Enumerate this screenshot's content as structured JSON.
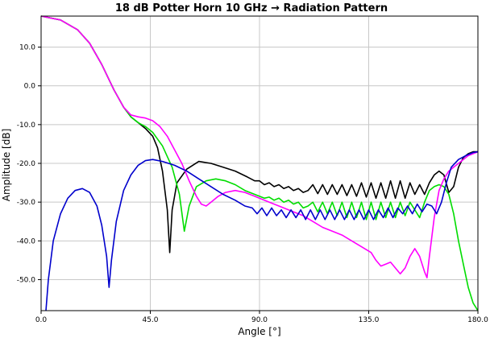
{
  "chart_data": {
    "type": "line",
    "title": "18 dB Potter Horn 10 GHz → Radiation Pattern",
    "xlabel": "Angle [°]",
    "ylabel": "Amplitude [dB]",
    "xlim": [
      0,
      180
    ],
    "ylim": [
      -58,
      18
    ],
    "x_ticks": [
      0,
      45,
      90,
      135,
      180
    ],
    "x_tick_labels": [
      "0.0",
      "45.0",
      "90.0",
      "135.0",
      "180.0"
    ],
    "y_ticks": [
      10,
      0,
      -10,
      -20,
      -30,
      -40,
      -50
    ],
    "y_tick_labels": [
      "10.0",
      "0.0",
      "-10.0",
      "-20.0",
      "-30.0",
      "-40.0",
      "-50.0"
    ],
    "grid": true,
    "series": [
      {
        "color": "#000000",
        "points": [
          [
            0,
            18
          ],
          [
            8,
            17
          ],
          [
            15,
            14.5
          ],
          [
            20,
            11
          ],
          [
            25,
            5.5
          ],
          [
            30,
            -1
          ],
          [
            34,
            -5.5
          ],
          [
            37,
            -8
          ],
          [
            40,
            -9.5
          ],
          [
            43,
            -11
          ],
          [
            46,
            -13
          ],
          [
            48,
            -16
          ],
          [
            50,
            -22
          ],
          [
            52,
            -32
          ],
          [
            53,
            -43
          ],
          [
            54,
            -32
          ],
          [
            56,
            -25
          ],
          [
            60,
            -21.5
          ],
          [
            65,
            -19.5
          ],
          [
            70,
            -20
          ],
          [
            75,
            -21
          ],
          [
            80,
            -22
          ],
          [
            85,
            -23.5
          ],
          [
            88,
            -24.5
          ],
          [
            90,
            -24.5
          ],
          [
            92,
            -25.5
          ],
          [
            94,
            -25
          ],
          [
            96,
            -26
          ],
          [
            98,
            -25.5
          ],
          [
            100,
            -26.5
          ],
          [
            102,
            -26
          ],
          [
            104,
            -27
          ],
          [
            106,
            -26.5
          ],
          [
            108,
            -27.5
          ],
          [
            110,
            -27
          ],
          [
            112,
            -25.5
          ],
          [
            114,
            -27.8
          ],
          [
            116,
            -25.5
          ],
          [
            118,
            -28
          ],
          [
            120,
            -25.5
          ],
          [
            122,
            -28
          ],
          [
            124,
            -25.5
          ],
          [
            126,
            -28.3
          ],
          [
            128,
            -25.5
          ],
          [
            130,
            -28.5
          ],
          [
            132,
            -25
          ],
          [
            134,
            -28.7
          ],
          [
            136,
            -25
          ],
          [
            138,
            -29
          ],
          [
            140,
            -25
          ],
          [
            142,
            -29
          ],
          [
            144,
            -24.5
          ],
          [
            146,
            -29
          ],
          [
            148,
            -24.5
          ],
          [
            150,
            -29
          ],
          [
            152,
            -25
          ],
          [
            154,
            -28
          ],
          [
            156,
            -25.5
          ],
          [
            158,
            -28
          ],
          [
            160,
            -25
          ],
          [
            162,
            -23
          ],
          [
            164,
            -22
          ],
          [
            166,
            -23
          ],
          [
            168,
            -27.5
          ],
          [
            170,
            -26
          ],
          [
            172,
            -21
          ],
          [
            174,
            -18.5
          ],
          [
            176,
            -17.5
          ],
          [
            178,
            -17
          ],
          [
            180,
            -17
          ]
        ]
      },
      {
        "color": "#00dd00",
        "points": [
          [
            0,
            18
          ],
          [
            8,
            17
          ],
          [
            15,
            14.5
          ],
          [
            20,
            11
          ],
          [
            25,
            5.5
          ],
          [
            30,
            -1
          ],
          [
            34,
            -5.5
          ],
          [
            37,
            -8
          ],
          [
            40,
            -9.5
          ],
          [
            43,
            -10.5
          ],
          [
            46,
            -12
          ],
          [
            50,
            -15.5
          ],
          [
            54,
            -21
          ],
          [
            57,
            -28
          ],
          [
            59,
            -37.5
          ],
          [
            61,
            -31
          ],
          [
            64,
            -26
          ],
          [
            68,
            -24.5
          ],
          [
            72,
            -24
          ],
          [
            76,
            -24.5
          ],
          [
            80,
            -25.5
          ],
          [
            84,
            -27
          ],
          [
            88,
            -28
          ],
          [
            90,
            -28.5
          ],
          [
            92,
            -29
          ],
          [
            94,
            -28.7
          ],
          [
            96,
            -29.5
          ],
          [
            98,
            -29
          ],
          [
            100,
            -30
          ],
          [
            102,
            -29.5
          ],
          [
            104,
            -30.5
          ],
          [
            106,
            -30
          ],
          [
            108,
            -31.5
          ],
          [
            110,
            -31
          ],
          [
            112,
            -30
          ],
          [
            114,
            -32.5
          ],
          [
            116,
            -30
          ],
          [
            118,
            -33
          ],
          [
            120,
            -30
          ],
          [
            122,
            -33.5
          ],
          [
            124,
            -30
          ],
          [
            126,
            -34
          ],
          [
            128,
            -30
          ],
          [
            130,
            -34
          ],
          [
            132,
            -30
          ],
          [
            134,
            -34.5
          ],
          [
            136,
            -30
          ],
          [
            138,
            -34.5
          ],
          [
            140,
            -30
          ],
          [
            142,
            -34
          ],
          [
            144,
            -30
          ],
          [
            146,
            -34
          ],
          [
            148,
            -30
          ],
          [
            150,
            -33.5
          ],
          [
            152,
            -30
          ],
          [
            154,
            -32
          ],
          [
            156,
            -34
          ],
          [
            158,
            -30
          ],
          [
            160,
            -27
          ],
          [
            162,
            -26
          ],
          [
            164,
            -25.5
          ],
          [
            166,
            -26
          ],
          [
            168,
            -28
          ],
          [
            170,
            -33
          ],
          [
            172,
            -40
          ],
          [
            174,
            -46
          ],
          [
            176,
            -52
          ],
          [
            178,
            -56
          ],
          [
            180,
            -58
          ]
        ]
      },
      {
        "color": "#ff00ff",
        "points": [
          [
            0,
            18
          ],
          [
            8,
            17
          ],
          [
            15,
            14.5
          ],
          [
            20,
            11
          ],
          [
            25,
            5.5
          ],
          [
            30,
            -1
          ],
          [
            34,
            -5.5
          ],
          [
            37,
            -7.5
          ],
          [
            40,
            -8
          ],
          [
            43,
            -8.3
          ],
          [
            46,
            -9
          ],
          [
            49,
            -10.5
          ],
          [
            52,
            -13
          ],
          [
            55,
            -16.5
          ],
          [
            58,
            -20
          ],
          [
            61,
            -24.5
          ],
          [
            64,
            -28.5
          ],
          [
            66,
            -30.5
          ],
          [
            68,
            -31
          ],
          [
            70,
            -30
          ],
          [
            73,
            -28.5
          ],
          [
            76,
            -27.5
          ],
          [
            80,
            -27
          ],
          [
            84,
            -27.5
          ],
          [
            88,
            -28.5
          ],
          [
            92,
            -29.5
          ],
          [
            96,
            -30.5
          ],
          [
            100,
            -31.5
          ],
          [
            104,
            -32.5
          ],
          [
            108,
            -33.5
          ],
          [
            112,
            -35
          ],
          [
            116,
            -36.5
          ],
          [
            120,
            -37.5
          ],
          [
            124,
            -38.5
          ],
          [
            128,
            -40
          ],
          [
            132,
            -41.5
          ],
          [
            136,
            -43
          ],
          [
            138,
            -45
          ],
          [
            140,
            -46.5
          ],
          [
            142,
            -46
          ],
          [
            144,
            -45.5
          ],
          [
            146,
            -47
          ],
          [
            148,
            -48.5
          ],
          [
            150,
            -47
          ],
          [
            152,
            -44
          ],
          [
            154,
            -42
          ],
          [
            156,
            -44
          ],
          [
            158,
            -48
          ],
          [
            159,
            -49.5
          ],
          [
            160,
            -44
          ],
          [
            162,
            -34
          ],
          [
            164,
            -27
          ],
          [
            166,
            -24
          ],
          [
            168,
            -22
          ],
          [
            170,
            -21
          ],
          [
            172,
            -20
          ],
          [
            174,
            -19
          ],
          [
            176,
            -18
          ],
          [
            178,
            -17.5
          ],
          [
            180,
            -17
          ]
        ]
      },
      {
        "color": "#0000cc",
        "points": [
          [
            2,
            -58
          ],
          [
            3,
            -50
          ],
          [
            5,
            -40
          ],
          [
            8,
            -33
          ],
          [
            11,
            -29
          ],
          [
            14,
            -27
          ],
          [
            17,
            -26.5
          ],
          [
            20,
            -27.5
          ],
          [
            23,
            -31
          ],
          [
            25,
            -36
          ],
          [
            27,
            -44
          ],
          [
            28,
            -52
          ],
          [
            29,
            -45
          ],
          [
            31,
            -35
          ],
          [
            34,
            -27
          ],
          [
            37,
            -23
          ],
          [
            40,
            -20.5
          ],
          [
            43,
            -19.3
          ],
          [
            46,
            -19
          ],
          [
            50,
            -19.5
          ],
          [
            55,
            -20.5
          ],
          [
            60,
            -22
          ],
          [
            65,
            -24
          ],
          [
            70,
            -26
          ],
          [
            75,
            -28
          ],
          [
            80,
            -29.5
          ],
          [
            84,
            -31
          ],
          [
            87,
            -31.5
          ],
          [
            89,
            -33
          ],
          [
            91,
            -31.5
          ],
          [
            93,
            -33.5
          ],
          [
            95,
            -31.5
          ],
          [
            97,
            -33.5
          ],
          [
            99,
            -32
          ],
          [
            101,
            -34
          ],
          [
            103,
            -32
          ],
          [
            105,
            -34
          ],
          [
            107,
            -32
          ],
          [
            109,
            -34.5
          ],
          [
            111,
            -32
          ],
          [
            113,
            -34.5
          ],
          [
            115,
            -32
          ],
          [
            117,
            -34.5
          ],
          [
            119,
            -32
          ],
          [
            121,
            -34.5
          ],
          [
            123,
            -32
          ],
          [
            125,
            -34.5
          ],
          [
            127,
            -32
          ],
          [
            129,
            -34.5
          ],
          [
            131,
            -32
          ],
          [
            133,
            -34.5
          ],
          [
            135,
            -32
          ],
          [
            137,
            -34.5
          ],
          [
            139,
            -32
          ],
          [
            141,
            -34
          ],
          [
            143,
            -31.5
          ],
          [
            145,
            -34
          ],
          [
            147,
            -31.5
          ],
          [
            149,
            -33
          ],
          [
            151,
            -31
          ],
          [
            153,
            -33
          ],
          [
            155,
            -30.5
          ],
          [
            157,
            -32.5
          ],
          [
            159,
            -30.5
          ],
          [
            161,
            -31
          ],
          [
            163,
            -33
          ],
          [
            165,
            -30
          ],
          [
            167,
            -25
          ],
          [
            169,
            -21
          ],
          [
            172,
            -19
          ],
          [
            175,
            -18
          ],
          [
            178,
            -17.2
          ],
          [
            180,
            -17
          ]
        ]
      }
    ]
  }
}
